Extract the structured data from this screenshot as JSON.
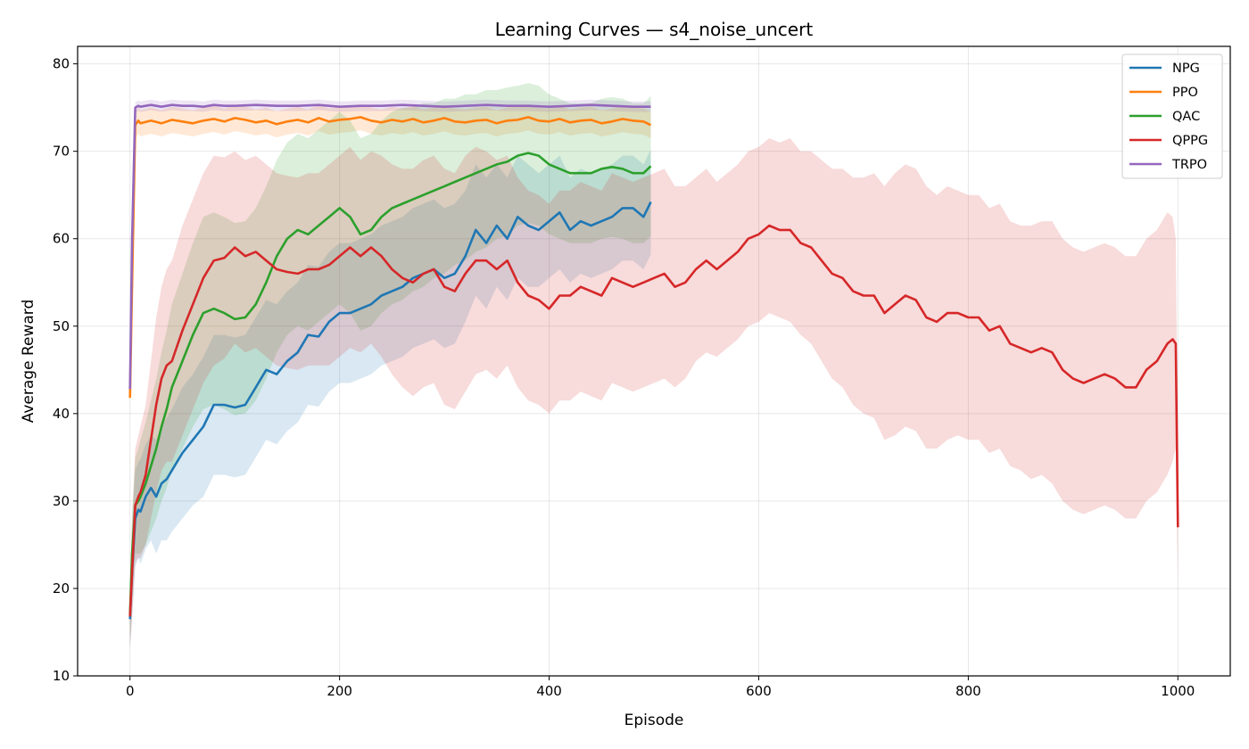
{
  "chart_data": {
    "type": "line",
    "title": "Learning Curves — s4_noise_uncert",
    "xlabel": "Episode",
    "ylabel": "Average Reward",
    "xlim": [
      -50,
      1050
    ],
    "ylim": [
      10,
      82
    ],
    "xticks": [
      0,
      200,
      400,
      600,
      800,
      1000
    ],
    "yticks": [
      10,
      20,
      30,
      40,
      50,
      60,
      70,
      80
    ],
    "grid": true,
    "legend_position": "top-right",
    "shaded_band": "variability band around each curve",
    "series": [
      {
        "name": "NPG",
        "color": "#1f77b4",
        "x": [
          0,
          2,
          5,
          8,
          10,
          15,
          20,
          25,
          30,
          35,
          40,
          50,
          60,
          70,
          80,
          90,
          100,
          110,
          120,
          130,
          140,
          150,
          160,
          170,
          180,
          190,
          200,
          210,
          220,
          230,
          240,
          250,
          260,
          270,
          280,
          290,
          300,
          310,
          320,
          330,
          340,
          350,
          360,
          370,
          380,
          390,
          400,
          410,
          420,
          430,
          440,
          450,
          460,
          470,
          480,
          490,
          497
        ],
        "y": [
          16.5,
          22.0,
          28.0,
          29.0,
          28.8,
          30.5,
          31.5,
          30.5,
          32.0,
          32.5,
          33.5,
          35.5,
          37.0,
          38.5,
          41.0,
          41.0,
          40.7,
          41.0,
          43.0,
          45.0,
          44.5,
          46.0,
          47.0,
          49.0,
          48.8,
          50.5,
          51.5,
          51.5,
          52.0,
          52.5,
          53.5,
          54.0,
          54.5,
          55.5,
          56.0,
          56.5,
          55.5,
          56.0,
          58.0,
          61.0,
          59.5,
          61.5,
          60.0,
          62.5,
          61.5,
          61.0,
          62.0,
          63.0,
          61.0,
          62.0,
          61.5,
          62.0,
          62.5,
          63.5,
          63.5,
          62.5,
          64.2
        ],
        "band": [
          3.5,
          5.0,
          5.5,
          5.5,
          6.0,
          6.0,
          6.0,
          6.5,
          6.5,
          7.0,
          7.0,
          7.5,
          7.5,
          8.0,
          8.0,
          8.0,
          8.0,
          8.0,
          8.0,
          8.0,
          8.0,
          8.0,
          8.0,
          8.0,
          8.0,
          8.0,
          8.0,
          8.0,
          8.0,
          8.0,
          8.0,
          8.0,
          8.0,
          8.0,
          8.0,
          8.0,
          8.0,
          8.0,
          7.5,
          7.5,
          7.5,
          7.0,
          7.0,
          7.0,
          7.0,
          6.5,
          6.5,
          6.5,
          6.0,
          6.0,
          6.0,
          6.0,
          6.0,
          6.0,
          6.0,
          6.0,
          6.0
        ]
      },
      {
        "name": "PPO",
        "color": "#ff7f0e",
        "x": [
          0,
          2,
          5,
          8,
          10,
          20,
          30,
          40,
          50,
          60,
          70,
          80,
          90,
          100,
          110,
          120,
          130,
          140,
          150,
          160,
          170,
          180,
          190,
          200,
          210,
          220,
          230,
          240,
          250,
          260,
          270,
          280,
          290,
          300,
          310,
          320,
          330,
          340,
          350,
          360,
          370,
          380,
          390,
          400,
          410,
          420,
          430,
          440,
          450,
          460,
          470,
          480,
          490,
          497
        ],
        "y": [
          41.8,
          55.0,
          73.0,
          73.5,
          73.2,
          73.5,
          73.2,
          73.6,
          73.4,
          73.2,
          73.5,
          73.7,
          73.4,
          73.8,
          73.6,
          73.3,
          73.5,
          73.1,
          73.4,
          73.6,
          73.3,
          73.8,
          73.4,
          73.6,
          73.7,
          73.9,
          73.5,
          73.3,
          73.6,
          73.4,
          73.7,
          73.3,
          73.5,
          73.8,
          73.4,
          73.3,
          73.5,
          73.6,
          73.2,
          73.5,
          73.6,
          73.9,
          73.5,
          73.4,
          73.7,
          73.3,
          73.5,
          73.6,
          73.2,
          73.4,
          73.7,
          73.5,
          73.4,
          73.0
        ],
        "band": [
          1.0,
          1.5,
          1.5,
          1.5,
          1.5,
          1.5,
          1.5,
          1.5,
          1.5,
          1.5,
          1.5,
          1.5,
          1.5,
          1.5,
          1.5,
          1.5,
          1.5,
          1.5,
          1.5,
          1.5,
          1.5,
          1.5,
          1.5,
          1.5,
          1.5,
          1.5,
          1.5,
          1.5,
          1.5,
          1.5,
          1.5,
          1.5,
          1.5,
          1.5,
          1.5,
          1.5,
          1.5,
          1.5,
          1.5,
          1.5,
          1.5,
          1.5,
          1.5,
          1.5,
          1.5,
          1.5,
          1.5,
          1.5,
          1.5,
          1.5,
          1.5,
          1.5,
          1.5,
          1.5
        ]
      },
      {
        "name": "QAC",
        "color": "#2ca02c",
        "x": [
          0,
          2,
          5,
          8,
          10,
          15,
          20,
          25,
          30,
          35,
          40,
          50,
          60,
          70,
          80,
          90,
          100,
          110,
          120,
          130,
          140,
          150,
          160,
          170,
          180,
          190,
          200,
          210,
          220,
          230,
          240,
          250,
          260,
          270,
          280,
          290,
          300,
          310,
          320,
          330,
          340,
          350,
          360,
          370,
          380,
          390,
          400,
          410,
          420,
          430,
          440,
          450,
          460,
          470,
          480,
          490,
          497
        ],
        "y": [
          17.0,
          24.0,
          29.5,
          30.0,
          30.5,
          32.0,
          34.0,
          36.0,
          38.5,
          40.5,
          43.0,
          46.0,
          49.0,
          51.5,
          52.0,
          51.5,
          50.8,
          51.0,
          52.5,
          55.0,
          58.0,
          60.0,
          61.0,
          60.5,
          61.5,
          62.5,
          63.5,
          62.5,
          60.5,
          61.0,
          62.5,
          63.5,
          64.0,
          64.5,
          65.0,
          65.5,
          66.0,
          66.5,
          67.0,
          67.5,
          68.0,
          68.5,
          68.8,
          69.5,
          69.8,
          69.5,
          68.5,
          68.0,
          67.5,
          67.5,
          67.5,
          68.0,
          68.2,
          68.0,
          67.5,
          67.5,
          68.3
        ],
        "band": [
          3.5,
          5.0,
          5.5,
          6.0,
          6.5,
          7.0,
          7.5,
          8.0,
          8.5,
          9.0,
          9.5,
          10.0,
          10.5,
          11.0,
          11.0,
          11.0,
          11.0,
          11.0,
          11.0,
          11.0,
          11.0,
          11.0,
          11.0,
          11.0,
          11.0,
          11.0,
          11.0,
          11.0,
          11.0,
          11.0,
          11.0,
          11.0,
          11.0,
          10.5,
          10.5,
          10.0,
          10.0,
          9.5,
          9.5,
          9.0,
          9.0,
          8.5,
          8.5,
          8.0,
          8.0,
          8.0,
          8.0,
          8.0,
          8.0,
          8.0,
          8.0,
          8.0,
          8.0,
          8.0,
          8.0,
          8.0,
          8.0
        ]
      },
      {
        "name": "QPPG",
        "color": "#d62728",
        "x": [
          0,
          2,
          5,
          8,
          10,
          15,
          20,
          25,
          30,
          35,
          40,
          50,
          60,
          70,
          80,
          90,
          100,
          110,
          120,
          130,
          140,
          150,
          160,
          170,
          180,
          190,
          200,
          210,
          220,
          230,
          240,
          250,
          260,
          270,
          280,
          290,
          300,
          310,
          320,
          330,
          340,
          350,
          360,
          370,
          380,
          390,
          400,
          410,
          420,
          430,
          440,
          450,
          460,
          470,
          480,
          490,
          500,
          510,
          520,
          530,
          540,
          550,
          560,
          570,
          580,
          590,
          600,
          610,
          620,
          630,
          640,
          650,
          660,
          670,
          680,
          690,
          700,
          710,
          720,
          730,
          740,
          750,
          760,
          770,
          780,
          790,
          800,
          810,
          820,
          830,
          840,
          850,
          860,
          870,
          880,
          890,
          900,
          910,
          920,
          930,
          940,
          950,
          960,
          970,
          980,
          990,
          995,
          998,
          1000
        ],
        "y": [
          16.8,
          22.0,
          29.5,
          30.5,
          31.0,
          33.0,
          37.0,
          41.0,
          44.0,
          45.5,
          46.0,
          49.5,
          52.5,
          55.5,
          57.5,
          57.8,
          59.0,
          58.0,
          58.5,
          57.5,
          56.5,
          56.2,
          56.0,
          56.5,
          56.5,
          57.0,
          58.0,
          59.0,
          58.0,
          59.0,
          58.0,
          56.5,
          55.5,
          55.0,
          56.0,
          56.5,
          54.5,
          54.0,
          56.0,
          57.5,
          57.5,
          56.5,
          57.5,
          55.0,
          53.5,
          53.0,
          52.0,
          53.5,
          53.5,
          54.5,
          54.0,
          53.5,
          55.5,
          55.0,
          54.5,
          55.0,
          55.5,
          56.0,
          54.5,
          55.0,
          56.5,
          57.5,
          56.5,
          57.5,
          58.5,
          60.0,
          60.5,
          61.5,
          61.0,
          61.0,
          59.5,
          59.0,
          57.5,
          56.0,
          55.5,
          54.0,
          53.5,
          53.5,
          51.5,
          52.5,
          53.5,
          53.0,
          51.0,
          50.5,
          51.5,
          51.5,
          51.0,
          51.0,
          49.5,
          50.0,
          48.0,
          47.5,
          47.0,
          47.5,
          47.0,
          45.0,
          44.0,
          43.5,
          44.0,
          44.5,
          44.0,
          43.0,
          43.0,
          45.0,
          46.0,
          48.0,
          48.5,
          48.0,
          27.0
        ],
        "band": [
          3.5,
          5.5,
          6.5,
          7.0,
          7.5,
          8.0,
          9.0,
          10.0,
          10.5,
          11.0,
          11.5,
          12.0,
          12.0,
          12.0,
          12.0,
          11.5,
          11.0,
          11.0,
          11.0,
          11.0,
          11.0,
          11.0,
          11.0,
          11.0,
          11.0,
          11.5,
          11.5,
          11.5,
          11.0,
          11.0,
          11.5,
          12.0,
          12.5,
          13.0,
          13.0,
          13.0,
          13.5,
          13.5,
          13.5,
          13.0,
          12.5,
          12.5,
          12.0,
          12.0,
          12.0,
          12.0,
          12.0,
          12.0,
          12.0,
          12.0,
          12.0,
          12.0,
          12.0,
          12.0,
          12.0,
          12.0,
          12.0,
          12.0,
          11.5,
          11.0,
          10.5,
          10.5,
          10.0,
          10.0,
          10.0,
          10.0,
          10.0,
          10.0,
          10.0,
          10.5,
          10.5,
          11.0,
          11.5,
          12.0,
          12.5,
          13.0,
          13.5,
          14.0,
          14.5,
          15.0,
          15.0,
          15.0,
          15.0,
          14.5,
          14.5,
          14.0,
          14.0,
          14.0,
          14.0,
          14.0,
          14.0,
          14.0,
          14.5,
          14.5,
          15.0,
          15.0,
          15.0,
          15.0,
          15.0,
          15.0,
          15.0,
          15.0,
          15.0,
          15.0,
          15.0,
          15.0,
          14.0,
          12.0,
          7.0
        ]
      },
      {
        "name": "TRPO",
        "color": "#9467bd",
        "x": [
          0,
          2,
          5,
          8,
          10,
          20,
          30,
          40,
          50,
          60,
          70,
          80,
          90,
          100,
          120,
          140,
          160,
          180,
          200,
          220,
          240,
          260,
          280,
          300,
          320,
          340,
          360,
          380,
          400,
          420,
          440,
          460,
          480,
          497
        ],
        "y": [
          42.8,
          60.0,
          75.0,
          75.2,
          75.1,
          75.3,
          75.1,
          75.3,
          75.2,
          75.2,
          75.1,
          75.3,
          75.2,
          75.2,
          75.3,
          75.2,
          75.2,
          75.3,
          75.1,
          75.2,
          75.2,
          75.3,
          75.2,
          75.1,
          75.2,
          75.3,
          75.2,
          75.2,
          75.1,
          75.2,
          75.3,
          75.2,
          75.1,
          75.1
        ],
        "band": [
          0.5,
          0.7,
          0.6,
          0.6,
          0.6,
          0.6,
          0.6,
          0.6,
          0.6,
          0.6,
          0.6,
          0.6,
          0.6,
          0.6,
          0.6,
          0.6,
          0.6,
          0.6,
          0.6,
          0.6,
          0.6,
          0.6,
          0.6,
          0.6,
          0.6,
          0.6,
          0.6,
          0.6,
          0.6,
          0.6,
          0.6,
          0.6,
          0.6,
          0.6
        ]
      }
    ]
  }
}
